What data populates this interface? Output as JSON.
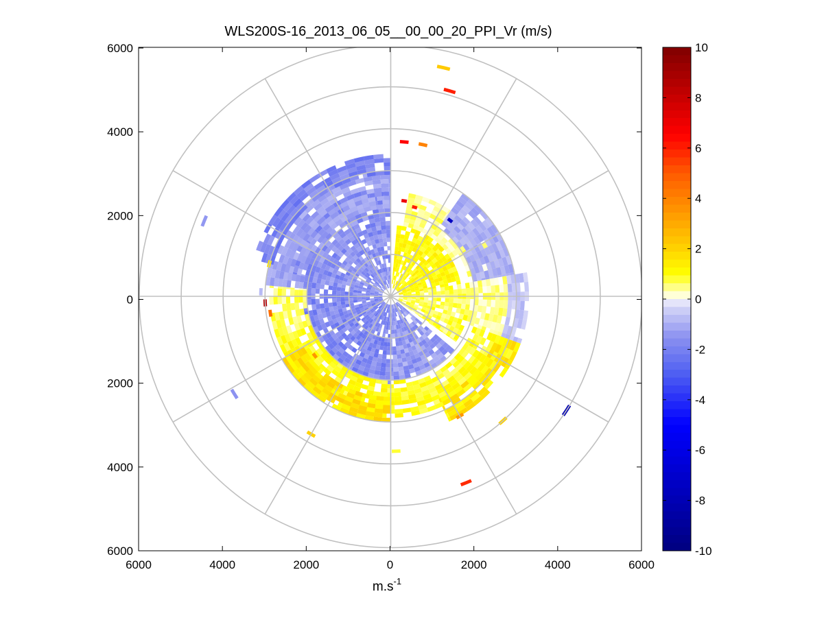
{
  "chart_data": {
    "type": "heatmap",
    "subtype": "polar-ppi",
    "title": "WLS200S-16_2013_06_05__00_00_20_PPI_Vr (m/s)",
    "xlabel_base": "m.s",
    "xlabel_exponent": "-1",
    "ylabel": "",
    "xlim": [
      -6000,
      6000
    ],
    "ylim": [
      -6000,
      6000
    ],
    "x_ticks": [
      -6000,
      -4000,
      -2000,
      0,
      2000,
      4000,
      6000
    ],
    "y_ticks": [
      -6000,
      -4000,
      -2000,
      0,
      2000,
      4000,
      6000
    ],
    "x_tick_labels": [
      "6000",
      "4000",
      "2000",
      "0",
      "2000",
      "4000",
      "6000"
    ],
    "y_tick_labels": [
      "6000",
      "4000",
      "2000",
      "0",
      "2000",
      "4000",
      "6000"
    ],
    "range_rings_m": [
      1000,
      2000,
      3000,
      4000,
      5000,
      6000
    ],
    "spoke_angles_deg": [
      0,
      30,
      60,
      90,
      120,
      150,
      180,
      210,
      240,
      270,
      300,
      330
    ],
    "colorbar": {
      "min": -10,
      "max": 10,
      "ticks": [
        10,
        8,
        6,
        4,
        2,
        0,
        -2,
        -4,
        -6,
        -8,
        -10
      ],
      "tick_labels": [
        "10",
        "8",
        "6",
        "4",
        "2",
        "0",
        "-2",
        "-4",
        "-6",
        "-8",
        "-10"
      ],
      "stops": [
        {
          "v": -10,
          "color": "#00007f"
        },
        {
          "v": -8,
          "color": "#0000b4"
        },
        {
          "v": -5,
          "color": "#0000ff"
        },
        {
          "v": -3,
          "color": "#4e5ef2"
        },
        {
          "v": -1.5,
          "color": "#8c92f0"
        },
        {
          "v": -0.2,
          "color": "#dcdcf8"
        },
        {
          "v": 0,
          "color": "#ffffff"
        },
        {
          "v": 0.2,
          "color": "#ffffcc"
        },
        {
          "v": 1,
          "color": "#ffff00"
        },
        {
          "v": 2,
          "color": "#ffd200"
        },
        {
          "v": 3.5,
          "color": "#ff9600"
        },
        {
          "v": 5,
          "color": "#ff5a00"
        },
        {
          "v": 6.5,
          "color": "#ff0000"
        },
        {
          "v": 8,
          "color": "#c80000"
        },
        {
          "v": 10,
          "color": "#7f0000"
        }
      ]
    },
    "sectors": [
      {
        "az": [
          280,
          360
        ],
        "r": [
          200,
          2600
        ],
        "v": -1.6
      },
      {
        "az": [
          180,
          280
        ],
        "r": [
          200,
          2100
        ],
        "v": -1.8
      },
      {
        "az": [
          130,
          180
        ],
        "r": [
          200,
          2000
        ],
        "v": -1.4
      },
      {
        "az": [
          275,
          360
        ],
        "r": [
          2100,
          3000
        ],
        "v": -1.2
      },
      {
        "az": [
          285,
          360
        ],
        "r": [
          2900,
          3400
        ],
        "v": -1.9
      },
      {
        "az": [
          5,
          80
        ],
        "r": [
          200,
          1700
        ],
        "v": 1.1
      },
      {
        "az": [
          80,
          125
        ],
        "r": [
          200,
          1900
        ],
        "v": 0.7
      },
      {
        "az": [
          10,
          60
        ],
        "r": [
          1700,
          2500
        ],
        "v": 0.5
      },
      {
        "az": [
          60,
          110
        ],
        "r": [
          1900,
          2800
        ],
        "v": 0.4
      },
      {
        "az": [
          110,
          170
        ],
        "r": [
          2100,
          2900
        ],
        "v": 0.9
      },
      {
        "az": [
          170,
          250
        ],
        "r": [
          2000,
          2900
        ],
        "v": 1.0
      },
      {
        "az": [
          180,
          240
        ],
        "r": [
          2400,
          3000
        ],
        "v": 1.6
      },
      {
        "az": [
          35,
          80
        ],
        "r": [
          2000,
          3000
        ],
        "v": -1.0
      },
      {
        "az": [
          80,
          110
        ],
        "r": [
          2800,
          3300
        ],
        "v": -0.6
      },
      {
        "az": [
          250,
          275
        ],
        "r": [
          2000,
          2900
        ],
        "v": 0.6
      },
      {
        "az": [
          110,
          155
        ],
        "r": [
          2700,
          3300
        ],
        "v": 1.4
      }
    ],
    "scatter_cells": [
      {
        "az": 13,
        "r": 5600,
        "v": 2.2
      },
      {
        "az": 16,
        "r": 5100,
        "v": 6.0
      },
      {
        "az": 5,
        "r": 3700,
        "v": 6.5
      },
      {
        "az": 12,
        "r": 3700,
        "v": 4.0
      },
      {
        "az": 38,
        "r": 2300,
        "v": -7.5
      },
      {
        "az": 15,
        "r": 2200,
        "v": 6.0
      },
      {
        "az": 8,
        "r": 2300,
        "v": 7.0
      },
      {
        "az": 292,
        "r": 4800,
        "v": -1.4
      },
      {
        "az": 267,
        "r": 3000,
        "v": 8.5
      },
      {
        "az": 262,
        "r": 2900,
        "v": 4.5
      },
      {
        "az": 232,
        "r": 2300,
        "v": 3.5
      },
      {
        "az": 238,
        "r": 4400,
        "v": -1.5
      },
      {
        "az": 210,
        "r": 3800,
        "v": 2.0
      },
      {
        "az": 178,
        "r": 3700,
        "v": 0.8
      },
      {
        "az": 158,
        "r": 4800,
        "v": 5.8
      },
      {
        "az": 123,
        "r": 5000,
        "v": -8.0
      },
      {
        "az": 138,
        "r": 4000,
        "v": 2.0
      },
      {
        "az": 150,
        "r": 3300,
        "v": 3.5
      },
      {
        "az": 285,
        "r": 3000,
        "v": 1.5
      },
      {
        "az": 272,
        "r": 3100,
        "v": -0.8
      }
    ]
  }
}
